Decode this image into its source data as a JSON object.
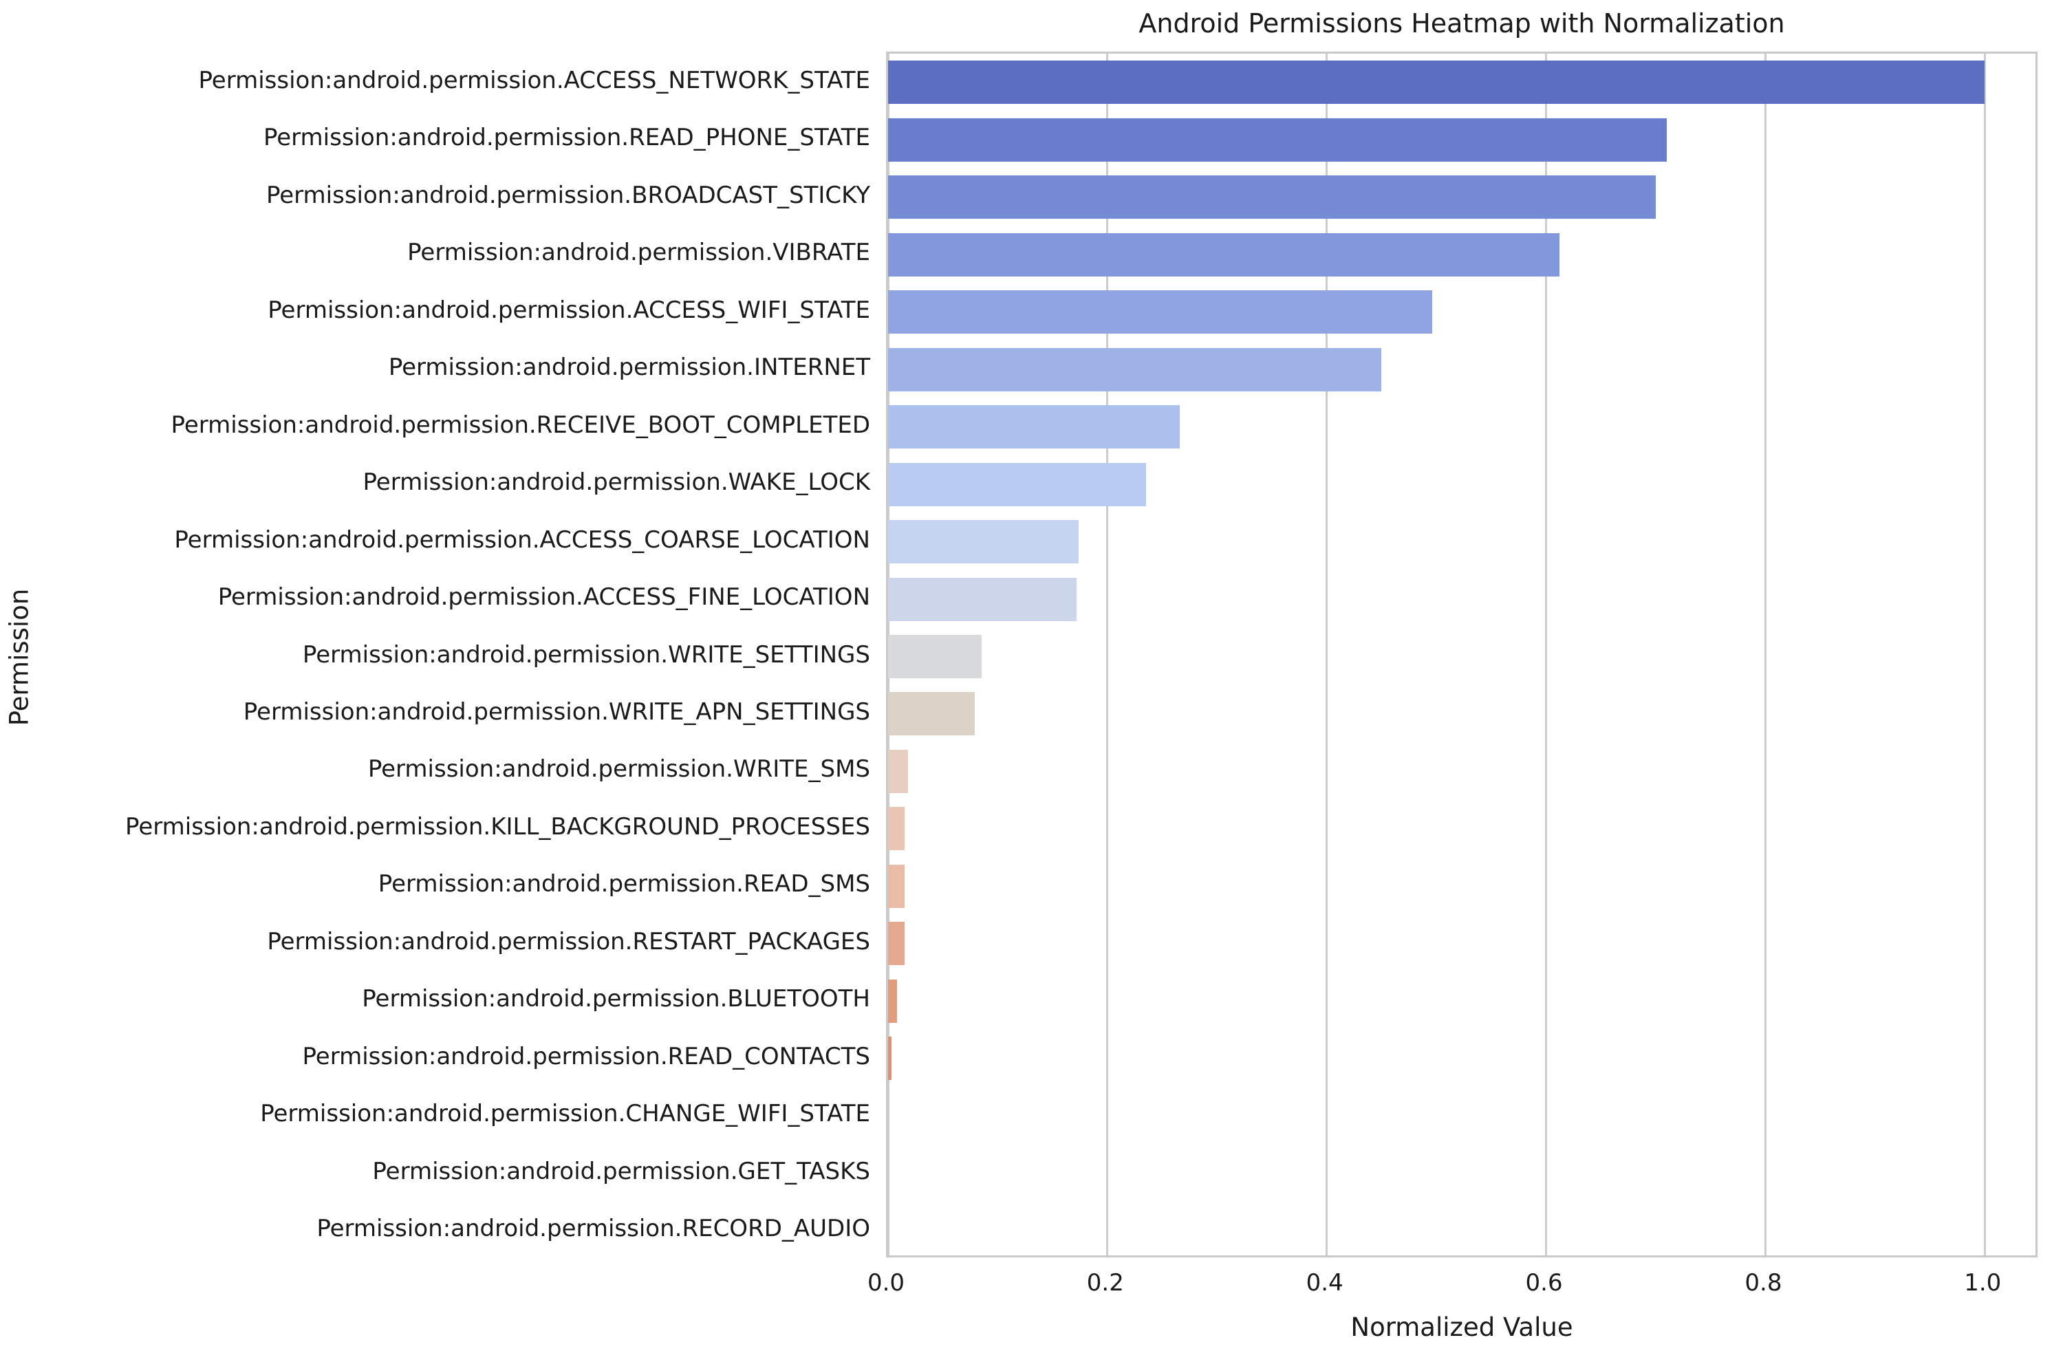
{
  "chart_data": {
    "type": "bar",
    "orientation": "horizontal",
    "title": "Android Permissions Heatmap with Normalization",
    "xlabel": "Normalized Value",
    "ylabel": "Permission",
    "xlim": [
      0,
      1.05
    ],
    "grid": true,
    "legend": false,
    "xtick_labels": [
      "0.0",
      "0.2",
      "0.4",
      "0.6",
      "0.8",
      "1.0"
    ],
    "xtick_values": [
      0.0,
      0.2,
      0.4,
      0.6,
      0.8,
      1.0
    ],
    "categories": [
      "Permission:android.permission.ACCESS_NETWORK_STATE",
      "Permission:android.permission.READ_PHONE_STATE",
      "Permission:android.permission.BROADCAST_STICKY",
      "Permission:android.permission.VIBRATE",
      "Permission:android.permission.ACCESS_WIFI_STATE",
      "Permission:android.permission.INTERNET",
      "Permission:android.permission.RECEIVE_BOOT_COMPLETED",
      "Permission:android.permission.WAKE_LOCK",
      "Permission:android.permission.ACCESS_COARSE_LOCATION",
      "Permission:android.permission.ACCESS_FINE_LOCATION",
      "Permission:android.permission.WRITE_SETTINGS",
      "Permission:android.permission.WRITE_APN_SETTINGS",
      "Permission:android.permission.WRITE_SMS",
      "Permission:android.permission.KILL_BACKGROUND_PROCESSES",
      "Permission:android.permission.READ_SMS",
      "Permission:android.permission.RESTART_PACKAGES",
      "Permission:android.permission.BLUETOOTH",
      "Permission:android.permission.READ_CONTACTS",
      "Permission:android.permission.CHANGE_WIFI_STATE",
      "Permission:android.permission.GET_TASKS",
      "Permission:android.permission.RECORD_AUDIO"
    ],
    "values": [
      1.0,
      0.71,
      0.7,
      0.612,
      0.496,
      0.45,
      0.266,
      0.235,
      0.174,
      0.172,
      0.085,
      0.079,
      0.018,
      0.015,
      0.015,
      0.015,
      0.008,
      0.003,
      0.0,
      0.0,
      0.0
    ],
    "bar_colors": [
      "#5b6ec1",
      "#687ecd",
      "#758bd4",
      "#8297dc",
      "#90a4e2",
      "#9eb2e8",
      "#acc0ee",
      "#b9cbf1",
      "#c4d3f0",
      "#cdd6ea",
      "#d8dadb",
      "#ddd2c8",
      "#e6cec0",
      "#e9c6b3",
      "#e8bca7",
      "#e4a98e",
      "#e29d80",
      "#dd8f71",
      "#d67e5f",
      "#ce6c4b",
      "#c65a3b"
    ],
    "colors": {
      "background": "#ffffff",
      "grid": "#cccccc",
      "border": "#c9c9c9",
      "text": "#1a1a1a"
    }
  }
}
